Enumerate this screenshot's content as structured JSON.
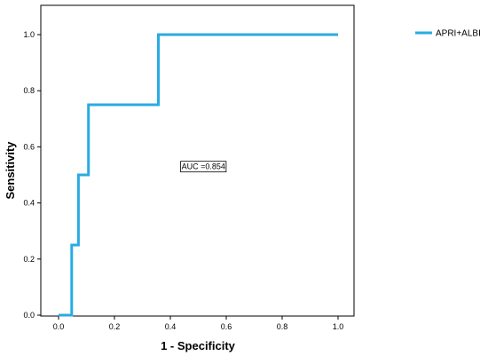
{
  "chart_data": {
    "type": "line",
    "title": "",
    "xlabel": "1 - Specificity",
    "ylabel": "Sensitivity",
    "xlim": [
      0,
      1
    ],
    "ylim": [
      0,
      1
    ],
    "x_ticks": [
      "0.0",
      "0.2",
      "0.4",
      "0.6",
      "0.8",
      "1.0"
    ],
    "y_ticks": [
      "0.0",
      "0.2",
      "0.4",
      "0.6",
      "0.8",
      "1.0"
    ],
    "grid": false,
    "legend_position": "top-right",
    "series": [
      {
        "name": "APRI+ALBI",
        "color": "#29abe2",
        "points": [
          [
            0.0,
            0.0
          ],
          [
            0.047,
            0.0
          ],
          [
            0.047,
            0.25
          ],
          [
            0.071,
            0.25
          ],
          [
            0.071,
            0.5
          ],
          [
            0.107,
            0.5
          ],
          [
            0.107,
            0.75
          ],
          [
            0.357,
            0.75
          ],
          [
            0.357,
            1.0
          ],
          [
            1.0,
            1.0
          ]
        ]
      }
    ],
    "annotations": [
      {
        "text": "AUC =0.854",
        "x": 0.44,
        "y": 0.52
      }
    ]
  }
}
